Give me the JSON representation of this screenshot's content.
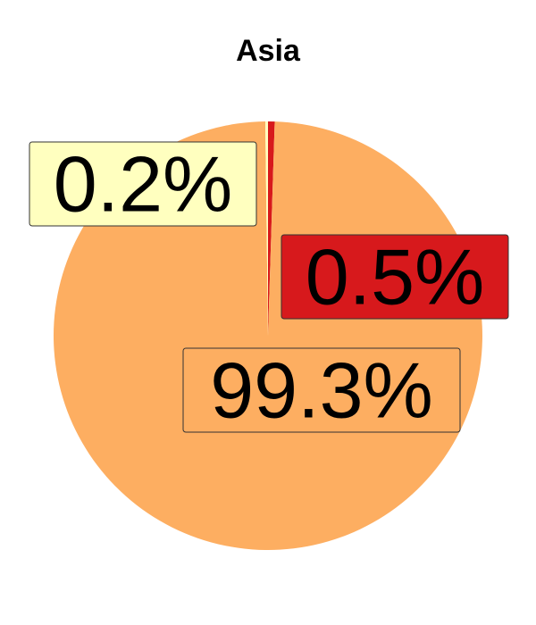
{
  "chart_data": {
    "type": "pie",
    "title": "Asia",
    "slices": [
      {
        "value": 0.5,
        "label": "0.5%",
        "color": "#d7191c"
      },
      {
        "value": 99.3,
        "label": "99.3%",
        "color": "#fdae61"
      },
      {
        "value": 0.2,
        "label": "0.2%",
        "color": "#ffffbf"
      }
    ],
    "start": "12 o'clock",
    "direction": "clockwise",
    "legend": "none"
  }
}
